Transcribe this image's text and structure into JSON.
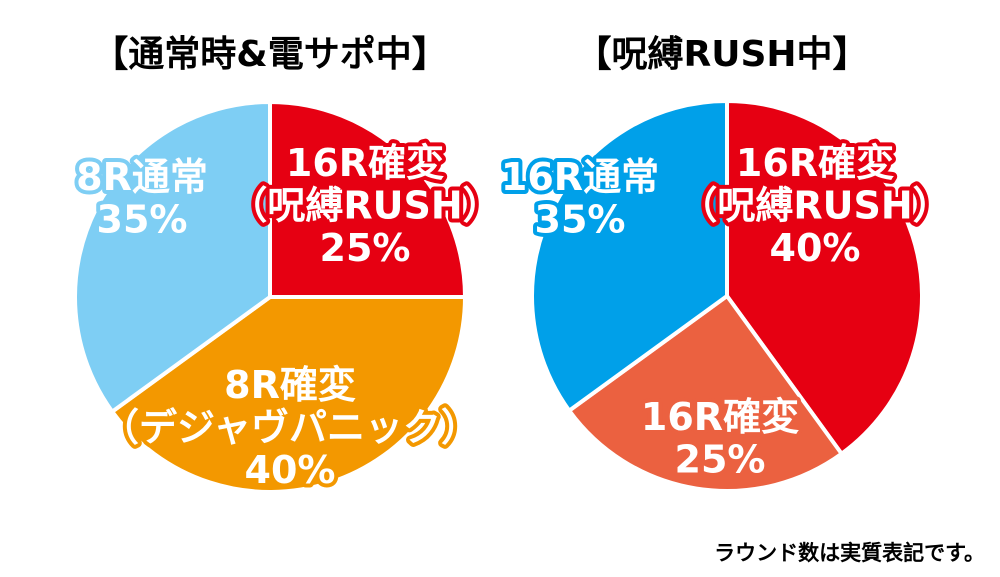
{
  "footnote": "ラウンド数は実質表記です。",
  "chart_data": [
    {
      "type": "pie",
      "title": "【通常時&電サポ中】",
      "slices": [
        {
          "label": [
            "16R確変",
            "（呪縛RUSH）",
            "25%"
          ],
          "value": 25,
          "color": "#e60012"
        },
        {
          "label": [
            "8R確変",
            "（デジャヴパニック）",
            "40%"
          ],
          "value": 40,
          "color": "#f39800"
        },
        {
          "label": [
            "8R通常",
            "35%"
          ],
          "value": 35,
          "color": "#7ecef4"
        }
      ]
    },
    {
      "type": "pie",
      "title": "【呪縛RUSH中】",
      "slices": [
        {
          "label": [
            "16R確変",
            "（呪縛RUSH）",
            "40%"
          ],
          "value": 40,
          "color": "#e60012"
        },
        {
          "label": [
            "16R確変",
            "25%"
          ],
          "value": 25,
          "color": "#eb6140"
        },
        {
          "label": [
            "16R通常",
            "35%"
          ],
          "value": 35,
          "color": "#00a0e9"
        }
      ]
    }
  ]
}
